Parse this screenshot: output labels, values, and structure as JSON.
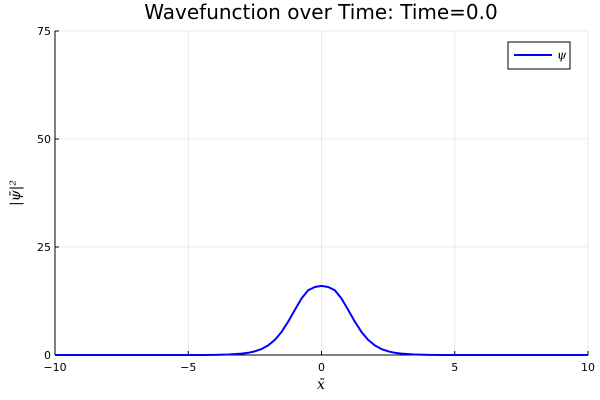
{
  "chart_data": {
    "type": "line",
    "title": "Wavefunction over Time: Time=0.0",
    "xlabel": "x̄",
    "ylabel": "|ψ̄|²",
    "xlim": [
      -10,
      10
    ],
    "ylim": [
      0,
      75
    ],
    "x_ticks": [
      -10,
      -5,
      0,
      5,
      10
    ],
    "x_tick_labels": [
      "−10",
      "−5",
      "0",
      "5",
      "10"
    ],
    "y_ticks": [
      0,
      25,
      50,
      75
    ],
    "y_tick_labels": [
      "0",
      "25",
      "50",
      "75"
    ],
    "grid": true,
    "legend_position": "top-right",
    "series": [
      {
        "name": "ψ",
        "color": "#0000ff",
        "x": [
          -10,
          -9,
          -8,
          -7,
          -6,
          -5,
          -4.5,
          -4,
          -3.5,
          -3,
          -2.75,
          -2.5,
          -2.25,
          -2,
          -1.75,
          -1.5,
          -1.25,
          -1,
          -0.75,
          -0.5,
          -0.25,
          0,
          0.25,
          0.5,
          0.75,
          1,
          1.25,
          1.5,
          1.75,
          2,
          2.25,
          2.5,
          2.75,
          3,
          3.5,
          4,
          4.5,
          5,
          6,
          7,
          8,
          9,
          10
        ],
        "y": [
          0,
          0,
          0,
          0,
          0,
          0.003,
          0.01,
          0.04,
          0.11,
          0.31,
          0.51,
          0.85,
          1.38,
          2.22,
          3.5,
          5.33,
          7.73,
          10.45,
          13.07,
          14.98,
          15.75,
          16.0,
          15.75,
          14.98,
          13.07,
          10.45,
          7.73,
          5.33,
          3.5,
          2.22,
          1.38,
          0.85,
          0.51,
          0.31,
          0.11,
          0.04,
          0.01,
          0.003,
          0,
          0,
          0,
          0,
          0
        ]
      }
    ]
  }
}
